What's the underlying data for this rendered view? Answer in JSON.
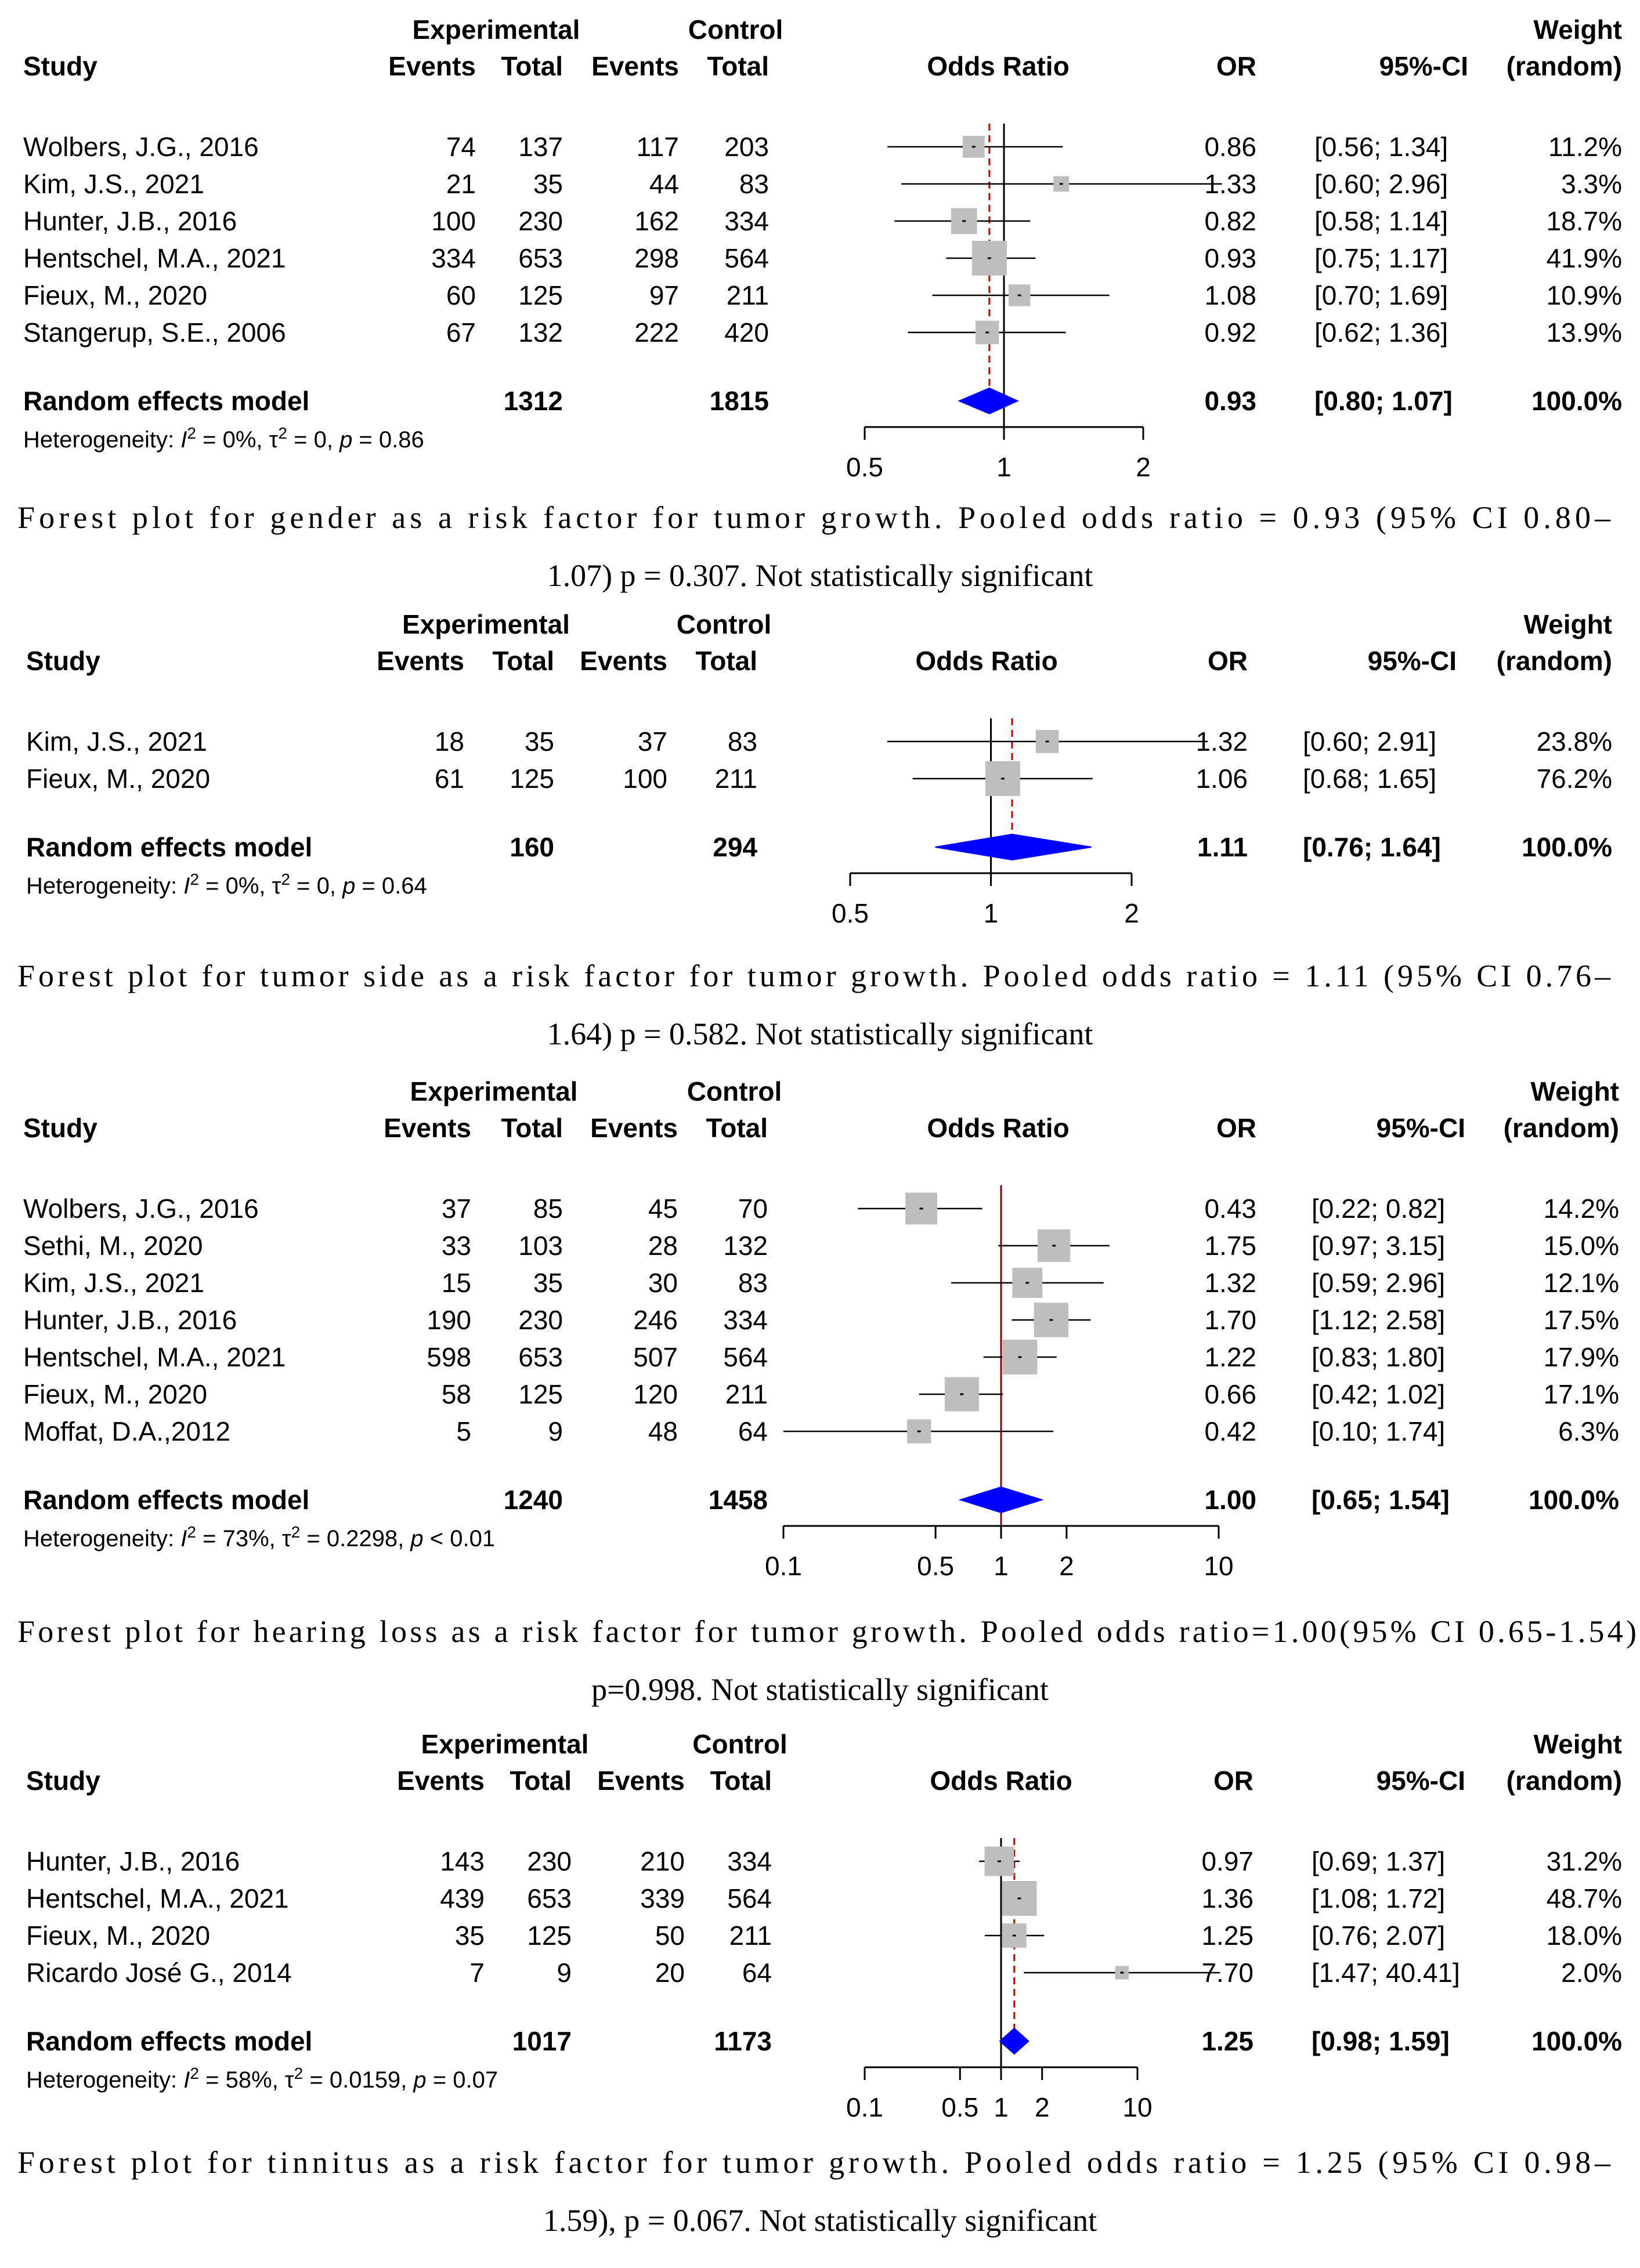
{
  "headers": {
    "experimental": "Experimental",
    "control": "Control",
    "study": "Study",
    "events": "Events",
    "total": "Total",
    "odds_ratio": "Odds Ratio",
    "or": "OR",
    "ci": "95%-CI",
    "weight": "Weight",
    "random": "(random)"
  },
  "colors": {
    "diamond": "#0000FF",
    "box": "#BEBEBE",
    "ref_line": "#C00000",
    "null_line_plot3": "#8B0000"
  },
  "chart_data": [
    {
      "type": "forest",
      "scale": "log",
      "xticks": [
        "0.5",
        "1",
        "2"
      ],
      "xlim": [
        0.5,
        2
      ],
      "studies": [
        {
          "name": "Wolbers, J.G., 2016",
          "e_events": "74",
          "e_total": "137",
          "c_events": "117",
          "c_total": "203",
          "or": 0.86,
          "lower": 0.56,
          "upper": 1.34,
          "or_text": "0.86",
          "ci_text": "[0.56; 1.34]",
          "weight_text": "11.2%",
          "weight": 11.2
        },
        {
          "name": "Kim, J.S., 2021",
          "e_events": "21",
          "e_total": "35",
          "c_events": "44",
          "c_total": "83",
          "or": 1.33,
          "lower": 0.6,
          "upper": 2.96,
          "or_text": "1.33",
          "ci_text": "[0.60; 2.96]",
          "weight_text": "3.3%",
          "weight": 3.3
        },
        {
          "name": "Hunter, J.B., 2016",
          "e_events": "100",
          "e_total": "230",
          "c_events": "162",
          "c_total": "334",
          "or": 0.82,
          "lower": 0.58,
          "upper": 1.14,
          "or_text": "0.82",
          "ci_text": "[0.58; 1.14]",
          "weight_text": "18.7%",
          "weight": 18.7
        },
        {
          "name": "Hentschel, M.A., 2021",
          "e_events": "334",
          "e_total": "653",
          "c_events": "298",
          "c_total": "564",
          "or": 0.93,
          "lower": 0.75,
          "upper": 1.17,
          "or_text": "0.93",
          "ci_text": "[0.75; 1.17]",
          "weight_text": "41.9%",
          "weight": 41.9
        },
        {
          "name": "Fieux, M., 2020",
          "e_events": "60",
          "e_total": "125",
          "c_events": "97",
          "c_total": "211",
          "or": 1.08,
          "lower": 0.7,
          "upper": 1.69,
          "or_text": "1.08",
          "ci_text": "[0.70; 1.69]",
          "weight_text": "10.9%",
          "weight": 10.9
        },
        {
          "name": "Stangerup, S.E., 2006",
          "e_events": "67",
          "e_total": "132",
          "c_events": "222",
          "c_total": "420",
          "or": 0.92,
          "lower": 0.62,
          "upper": 1.36,
          "or_text": "0.92",
          "ci_text": "[0.62; 1.36]",
          "weight_text": "13.9%",
          "weight": 13.9
        }
      ],
      "pooled": {
        "label": "Random effects model",
        "e_total": "1312",
        "c_total": "1815",
        "or": 0.93,
        "lower": 0.8,
        "upper": 1.07,
        "or_text": "0.93",
        "ci_text": "[0.80; 1.07]",
        "weight_text": "100.0%"
      },
      "heterogeneity": {
        "prefix": "Heterogeneity: ",
        "i2": "= 0%, ",
        "tau2": "= 0, ",
        "p": " = 0.86"
      },
      "caption": [
        "Forest plot for gender as a risk factor for tumor growth. Pooled odds ratio = 0.93 (95% CI 0.80–",
        "1.07) p = 0.307. Not statistically significant"
      ]
    },
    {
      "type": "forest",
      "scale": "log",
      "xticks": [
        "0.5",
        "1",
        "2"
      ],
      "xlim": [
        0.5,
        2
      ],
      "studies": [
        {
          "name": "Kim, J.S., 2021",
          "e_events": "18",
          "e_total": "35",
          "c_events": "37",
          "c_total": "83",
          "or": 1.32,
          "lower": 0.6,
          "upper": 2.91,
          "or_text": "1.32",
          "ci_text": "[0.60; 2.91]",
          "weight_text": "23.8%",
          "weight": 23.8
        },
        {
          "name": "Fieux, M., 2020",
          "e_events": "61",
          "e_total": "125",
          "c_events": "100",
          "c_total": "211",
          "or": 1.06,
          "lower": 0.68,
          "upper": 1.65,
          "or_text": "1.06",
          "ci_text": "[0.68; 1.65]",
          "weight_text": "76.2%",
          "weight": 76.2
        }
      ],
      "pooled": {
        "label": "Random effects model",
        "e_total": "160",
        "c_total": "294",
        "or": 1.11,
        "lower": 0.76,
        "upper": 1.64,
        "or_text": "1.11",
        "ci_text": "[0.76; 1.64]",
        "weight_text": "100.0%"
      },
      "heterogeneity": {
        "prefix": "Heterogeneity: ",
        "i2": "= 0%, ",
        "tau2": "= 0, ",
        "p": " = 0.64"
      },
      "caption": [
        "Forest plot for tumor side as a risk factor for tumor growth. Pooled odds ratio = 1.11 (95% CI 0.76–",
        "1.64) p = 0.582. Not statistically significant"
      ]
    },
    {
      "type": "forest",
      "scale": "log",
      "xticks": [
        "0.1",
        "0.5",
        "1",
        "2",
        "10"
      ],
      "xlim": [
        0.1,
        10
      ],
      "studies": [
        {
          "name": "Wolbers, J.G., 2016",
          "e_events": "37",
          "e_total": "85",
          "c_events": "45",
          "c_total": "70",
          "or": 0.43,
          "lower": 0.22,
          "upper": 0.82,
          "or_text": "0.43",
          "ci_text": "[0.22; 0.82]",
          "weight_text": "14.2%",
          "weight": 14.2
        },
        {
          "name": "Sethi, M., 2020",
          "e_events": "33",
          "e_total": "103",
          "c_events": "28",
          "c_total": "132",
          "or": 1.75,
          "lower": 0.97,
          "upper": 3.15,
          "or_text": "1.75",
          "ci_text": "[0.97; 3.15]",
          "weight_text": "15.0%",
          "weight": 15.0
        },
        {
          "name": "Kim, J.S., 2021",
          "e_events": "15",
          "e_total": "35",
          "c_events": "30",
          "c_total": "83",
          "or": 1.32,
          "lower": 0.59,
          "upper": 2.96,
          "or_text": "1.32",
          "ci_text": "[0.59; 2.96]",
          "weight_text": "12.1%",
          "weight": 12.1
        },
        {
          "name": "Hunter, J.B., 2016",
          "e_events": "190",
          "e_total": "230",
          "c_events": "246",
          "c_total": "334",
          "or": 1.7,
          "lower": 1.12,
          "upper": 2.58,
          "or_text": "1.70",
          "ci_text": "[1.12; 2.58]",
          "weight_text": "17.5%",
          "weight": 17.5
        },
        {
          "name": "Hentschel, M.A., 2021",
          "e_events": "598",
          "e_total": "653",
          "c_events": "507",
          "c_total": "564",
          "or": 1.22,
          "lower": 0.83,
          "upper": 1.8,
          "or_text": "1.22",
          "ci_text": "[0.83; 1.80]",
          "weight_text": "17.9%",
          "weight": 17.9
        },
        {
          "name": "Fieux, M., 2020",
          "e_events": "58",
          "e_total": "125",
          "c_events": "120",
          "c_total": "211",
          "or": 0.66,
          "lower": 0.42,
          "upper": 1.02,
          "or_text": "0.66",
          "ci_text": "[0.42; 1.02]",
          "weight_text": "17.1%",
          "weight": 17.1
        },
        {
          "name": "Moffat, D.A.,2012",
          "e_events": "5",
          "e_total": "9",
          "c_events": "48",
          "c_total": "64",
          "or": 0.42,
          "lower": 0.1,
          "upper": 1.74,
          "or_text": "0.42",
          "ci_text": "[0.10; 1.74]",
          "weight_text": "6.3%",
          "weight": 6.3
        }
      ],
      "pooled": {
        "label": "Random effects model",
        "e_total": "1240",
        "c_total": "1458",
        "or": 1.0,
        "lower": 0.65,
        "upper": 1.54,
        "or_text": "1.00",
        "ci_text": "[0.65; 1.54]",
        "weight_text": "100.0%"
      },
      "heterogeneity": {
        "prefix": "Heterogeneity: ",
        "i2": "= 73%, ",
        "tau2": "= 0.2298, ",
        "p": " < 0.01"
      },
      "caption": [
        "Forest plot for hearing loss as a risk factor for tumor growth. Pooled odds ratio=1.00(95% CI 0.65-1.54)",
        "p=0.998. Not statistically significant"
      ]
    },
    {
      "type": "forest",
      "scale": "log",
      "xticks": [
        "0.1",
        "0.5",
        "1",
        "2",
        "10"
      ],
      "xlim": [
        0.1,
        10
      ],
      "studies": [
        {
          "name": "Hunter, J.B., 2016",
          "e_events": "143",
          "e_total": "230",
          "c_events": "210",
          "c_total": "334",
          "or": 0.97,
          "lower": 0.69,
          "upper": 1.37,
          "or_text": "0.97",
          "ci_text": "[0.69; 1.37]",
          "weight_text": "31.2%",
          "weight": 31.2
        },
        {
          "name": "Hentschel, M.A., 2021",
          "e_events": "439",
          "e_total": "653",
          "c_events": "339",
          "c_total": "564",
          "or": 1.36,
          "lower": 1.08,
          "upper": 1.72,
          "or_text": "1.36",
          "ci_text": "[1.08; 1.72]",
          "weight_text": "48.7%",
          "weight": 48.7
        },
        {
          "name": "Fieux, M., 2020",
          "e_events": "35",
          "e_total": "125",
          "c_events": "50",
          "c_total": "211",
          "or": 1.25,
          "lower": 0.76,
          "upper": 2.07,
          "or_text": "1.25",
          "ci_text": "[0.76; 2.07]",
          "weight_text": "18.0%",
          "weight": 18.0
        },
        {
          "name": "Ricardo José G., 2014",
          "e_events": "7",
          "e_total": "9",
          "c_events": "20",
          "c_total": "64",
          "or": 7.7,
          "lower": 1.47,
          "upper": 40.41,
          "or_text": "7.70",
          "ci_text": "[1.47; 40.41]",
          "weight_text": "2.0%",
          "weight": 2.0
        }
      ],
      "pooled": {
        "label": "Random effects model",
        "e_total": "1017",
        "c_total": "1173",
        "or": 1.25,
        "lower": 0.98,
        "upper": 1.59,
        "or_text": "1.25",
        "ci_text": "[0.98; 1.59]",
        "weight_text": "100.0%"
      },
      "heterogeneity": {
        "prefix": "Heterogeneity: ",
        "i2": "= 58%, ",
        "tau2": "= 0.0159, ",
        "p": " = 0.07"
      },
      "caption": [
        "Forest plot for tinnitus as a risk factor for tumor growth. Pooled odds ratio = 1.25 (95% CI 0.98–",
        "1.59), p = 0.067. Not statistically significant"
      ]
    }
  ]
}
